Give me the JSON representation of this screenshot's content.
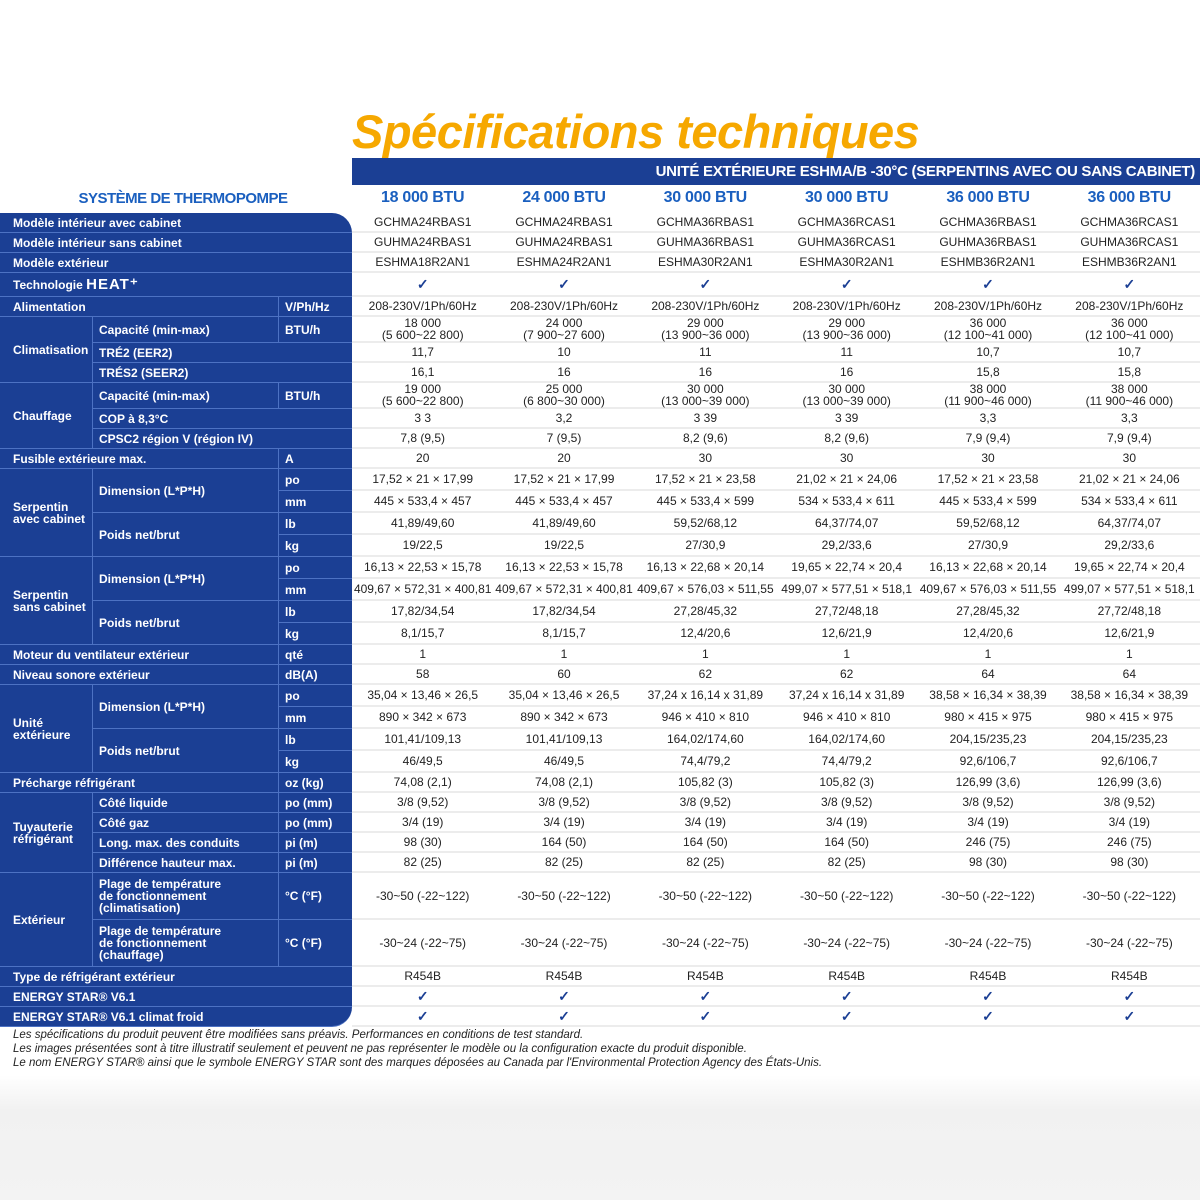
{
  "title": "Spécifications techniques",
  "banner": "UNITÉ EXTÉRIEURE ESHMA/B -30°C (SERPENTINS AVEC OU SANS CABINET)",
  "system_title": "SYSTÈME DE THERMOPOMPE",
  "columns": [
    "18 000 BTU",
    "24 000 BTU",
    "30 000 BTU",
    "30 000 BTU",
    "36 000 BTU",
    "36 000 BTU"
  ],
  "check_icon": "checkmark-icon",
  "colors": {
    "primary_blue": "#1b3f94",
    "title_orange": "#f6a800",
    "header_blue": "#1a5fbf"
  },
  "sections": [
    {
      "label": "Modèle intérieur avec cabinet",
      "values": [
        "GCHMA24RBAS1",
        "GCHMA24RBAS1",
        "GCHMA36RBAS1",
        "GCHMA36RCAS1",
        "GCHMA36RBAS1",
        "GCHMA36RCAS1"
      ]
    },
    {
      "label": "Modèle intérieur sans cabinet",
      "values": [
        "GUHMA24RBAS1",
        "GUHMA24RBAS1",
        "GUHMA36RBAS1",
        "GUHMA36RCAS1",
        "GUHMA36RBAS1",
        "GUHMA36RCAS1"
      ]
    },
    {
      "label": "Modèle extérieur",
      "values": [
        "ESHMA18R2AN1",
        "ESHMA24R2AN1",
        "ESHMA30R2AN1",
        "ESHMA30R2AN1",
        "ESHMB36R2AN1",
        "ESHMB36R2AN1"
      ]
    },
    {
      "label": "Technologie",
      "label_mark": "HEAT⁺",
      "values": [
        true,
        true,
        true,
        true,
        true,
        true
      ]
    },
    {
      "label": "Alimentation",
      "unit": "V/Ph/Hz",
      "values": [
        "208-230V/1Ph/60Hz",
        "208-230V/1Ph/60Hz",
        "208-230V/1Ph/60Hz",
        "208-230V/1Ph/60Hz",
        "208-230V/1Ph/60Hz",
        "208-230V/1Ph/60Hz"
      ]
    },
    {
      "group": "Climatisation",
      "items": [
        {
          "label": "Capacité (min-max)",
          "unit": "BTU/h",
          "values": [
            "18 000\n(5 600~22 800)",
            "24 000\n(7 900~27 600)",
            "29 000\n(13 900~36 000)",
            "29 000\n(13 900~36 000)",
            "36 000\n(12 100~41 000)",
            "36 000\n(12 100~41 000)"
          ]
        },
        {
          "label": "TRÉ2 (EER2)",
          "values": [
            "11,7",
            "10",
            "11",
            "11",
            "10,7",
            "10,7"
          ]
        },
        {
          "label": "TRÉS2 (SEER2)",
          "values": [
            "16,1",
            "16",
            "16",
            "16",
            "15,8",
            "15,8"
          ]
        }
      ]
    },
    {
      "group": "Chauffage",
      "items": [
        {
          "label": "Capacité (min-max)",
          "unit": "BTU/h",
          "values": [
            "19 000\n(5 600~22 800)",
            "25 000\n(6 800~30 000)",
            "30 000\n(13 000~39 000)",
            "30 000\n(13 000~39 000)",
            "38 000\n(11 900~46 000)",
            "38 000\n(11 900~46 000)"
          ]
        },
        {
          "label": "COP à 8,3°C",
          "values": [
            "3 3",
            "3,2",
            "3 39",
            "3 39",
            "3,3",
            "3,3"
          ]
        },
        {
          "label": "CPSC2 région V (région IV)",
          "values": [
            "7,8 (9,5)",
            "7 (9,5)",
            "8,2 (9,6)",
            "8,2 (9,6)",
            "7,9 (9,4)",
            "7,9 (9,4)"
          ]
        }
      ]
    },
    {
      "label": "Fusible extérieure max.",
      "unit": "A",
      "values": [
        "20",
        "20",
        "30",
        "30",
        "30",
        "30"
      ]
    },
    {
      "group": "Serpentin\navec cabinet",
      "items": [
        {
          "label": "Dimension (L*P*H)",
          "units": [
            {
              "unit": "po",
              "values": [
                "17,52 × 21 × 17,99",
                "17,52 × 21 × 17,99",
                "17,52 × 21 × 23,58",
                "21,02 × 21 × 24,06",
                "17,52 × 21 × 23,58",
                "21,02 × 21 × 24,06"
              ]
            },
            {
              "unit": "mm",
              "values": [
                "445 × 533,4 × 457",
                "445 × 533,4 × 457",
                "445 × 533,4 × 599",
                "534 × 533,4 × 611",
                "445 × 533,4 × 599",
                "534 × 533,4 × 611"
              ]
            }
          ]
        },
        {
          "label": "Poids net/brut",
          "units": [
            {
              "unit": "lb",
              "values": [
                "41,89/49,60",
                "41,89/49,60",
                "59,52/68,12",
                "64,37/74,07",
                "59,52/68,12",
                "64,37/74,07"
              ]
            },
            {
              "unit": "kg",
              "values": [
                "19/22,5",
                "19/22,5",
                "27/30,9",
                "29,2/33,6",
                "27/30,9",
                "29,2/33,6"
              ]
            }
          ]
        }
      ]
    },
    {
      "group": "Serpentin\nsans cabinet",
      "items": [
        {
          "label": "Dimension (L*P*H)",
          "units": [
            {
              "unit": "po",
              "values": [
                "16,13 × 22,53 × 15,78",
                "16,13 × 22,53 × 15,78",
                "16,13 × 22,68 × 20,14",
                "19,65 × 22,74 × 20,4",
                "16,13 × 22,68 × 20,14",
                "19,65 × 22,74 × 20,4"
              ]
            },
            {
              "unit": "mm",
              "values": [
                "409,67 × 572,31 × 400,81",
                "409,67 × 572,31 × 400,81",
                "409,67 × 576,03 × 511,55",
                "499,07 × 577,51 × 518,1",
                "409,67 × 576,03 × 511,55",
                "499,07 × 577,51 × 518,1"
              ]
            }
          ]
        },
        {
          "label": "Poids net/brut",
          "units": [
            {
              "unit": "lb",
              "values": [
                "17,82/34,54",
                "17,82/34,54",
                "27,28/45,32",
                "27,72/48,18",
                "27,28/45,32",
                "27,72/48,18"
              ]
            },
            {
              "unit": "kg",
              "values": [
                "8,1/15,7",
                "8,1/15,7",
                "12,4/20,6",
                "12,6/21,9",
                "12,4/20,6",
                "12,6/21,9"
              ]
            }
          ]
        }
      ]
    },
    {
      "label": "Moteur du ventilateur extérieur",
      "unit": "qté",
      "values": [
        "1",
        "1",
        "1",
        "1",
        "1",
        "1"
      ]
    },
    {
      "label": "Niveau sonore extérieur",
      "unit": "dB(A)",
      "values": [
        "58",
        "60",
        "62",
        "62",
        "64",
        "64"
      ]
    },
    {
      "group": "Unité\nextérieure",
      "items": [
        {
          "label": "Dimension (L*P*H)",
          "units": [
            {
              "unit": "po",
              "values": [
                "35,04 × 13,46 × 26,5",
                "35,04 × 13,46 × 26,5",
                "37,24 x 16,14 x 31,89",
                "37,24 x 16,14 x 31,89",
                "38,58 × 16,34 × 38,39",
                "38,58 × 16,34 × 38,39"
              ]
            },
            {
              "unit": "mm",
              "values": [
                "890 × 342 × 673",
                "890 × 342 × 673",
                "946 × 410 × 810",
                "946 × 410 × 810",
                "980 × 415 × 975",
                "980 × 415 × 975"
              ]
            }
          ]
        },
        {
          "label": "Poids net/brut",
          "units": [
            {
              "unit": "lb",
              "values": [
                "101,41/109,13",
                "101,41/109,13",
                "164,02/174,60",
                "164,02/174,60",
                "204,15/235,23",
                "204,15/235,23"
              ]
            },
            {
              "unit": "kg",
              "values": [
                "46/49,5",
                "46/49,5",
                "74,4/79,2",
                "74,4/79,2",
                "92,6/106,7",
                "92,6/106,7"
              ]
            }
          ]
        }
      ]
    },
    {
      "label": "Précharge réfrigérant",
      "unit": "oz (kg)",
      "values": [
        "74,08 (2,1)",
        "74,08 (2,1)",
        "105,82 (3)",
        "105,82 (3)",
        "126,99 (3,6)",
        "126,99 (3,6)"
      ]
    },
    {
      "group": "Tuyauterie\nréfrigérant",
      "items": [
        {
          "label": "Côté liquide",
          "unit": "po (mm)",
          "values": [
            "3/8 (9,52)",
            "3/8 (9,52)",
            "3/8 (9,52)",
            "3/8 (9,52)",
            "3/8 (9,52)",
            "3/8 (9,52)"
          ]
        },
        {
          "label": "Côté gaz",
          "unit": "po (mm)",
          "values": [
            "3/4 (19)",
            "3/4 (19)",
            "3/4 (19)",
            "3/4 (19)",
            "3/4 (19)",
            "3/4 (19)"
          ]
        },
        {
          "label": "Long. max. des conduits",
          "unit": "pi (m)",
          "values": [
            "98 (30)",
            "164 (50)",
            "164 (50)",
            "164 (50)",
            "246 (75)",
            "246 (75)"
          ]
        },
        {
          "label": "Différence hauteur max.",
          "unit": "pi (m)",
          "values": [
            "82 (25)",
            "82 (25)",
            "82 (25)",
            "82 (25)",
            "98 (30)",
            "98 (30)"
          ]
        }
      ]
    },
    {
      "group": "Extérieur",
      "items": [
        {
          "label": "Plage de température\nde fonctionnement\n(climatisation)",
          "unit": "°C (°F)",
          "values": [
            "-30~50 (-22~122)",
            "-30~50 (-22~122)",
            "-30~50 (-22~122)",
            "-30~50 (-22~122)",
            "-30~50 (-22~122)",
            "-30~50 (-22~122)"
          ]
        },
        {
          "label": "Plage de température\nde fonctionnement\n(chauffage)",
          "unit": "°C (°F)",
          "values": [
            "-30~24 (-22~75)",
            "-30~24 (-22~75)",
            "-30~24 (-22~75)",
            "-30~24 (-22~75)",
            "-30~24 (-22~75)",
            "-30~24 (-22~75)"
          ]
        }
      ]
    },
    {
      "label": "Type de réfrigérant extérieur",
      "values": [
        "R454B",
        "R454B",
        "R454B",
        "R454B",
        "R454B",
        "R454B"
      ]
    },
    {
      "label": "ENERGY STAR® V6.1",
      "values": [
        true,
        true,
        true,
        true,
        true,
        true
      ]
    },
    {
      "label": "ENERGY STAR® V6.1 climat froid",
      "values": [
        true,
        true,
        true,
        true,
        true,
        true
      ]
    }
  ],
  "footnotes": [
    "Les spécifications du produit peuvent être modifiées sans préavis. Performances en conditions de test standard.",
    "Les images présentées sont à titre illustratif seulement et peuvent ne pas représenter le modèle ou la configuration exacte du produit disponible.",
    "Le nom ENERGY STAR® ainsi que le symbole ENERGY STAR sont des marques déposées au Canada par l'Environmental Protection Agency des États-Unis."
  ]
}
